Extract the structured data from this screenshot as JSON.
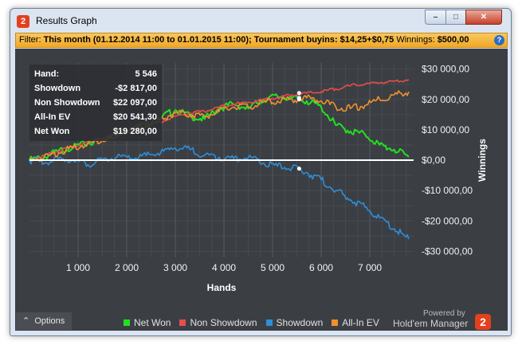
{
  "window": {
    "title": "Results Graph"
  },
  "filter": {
    "prefix": "Filter: ",
    "bold_text": "This month (01.12.2014 11:00 to 01.01.2015 11:00); Tournament buyins: $14,25+$0,75",
    "winnings_label": " Winnings: ",
    "winnings_value": "$500,00"
  },
  "stats": [
    {
      "label": "Hand:",
      "value": "5 546"
    },
    {
      "label": "Showdown",
      "value": "-$2 817,00"
    },
    {
      "label": "Non Showdown",
      "value": "$22 097,00"
    },
    {
      "label": "All-In EV",
      "value": "$20 541,30"
    },
    {
      "label": "Net Won",
      "value": "$19 280,00"
    }
  ],
  "options_label": "Options",
  "brand": {
    "powered": "Powered by",
    "name": "Hold'em Manager",
    "logo_text": "2"
  },
  "colors": {
    "net_won": "#22e022",
    "non_showdown": "#e84c4c",
    "showdown": "#2f8ed8",
    "all_in_ev": "#f0912c"
  },
  "chart_data": {
    "type": "line",
    "xlabel": "Hands",
    "ylabel": "Winnings",
    "xlim": [
      0,
      7900
    ],
    "ylim": [
      -32000,
      32000
    ],
    "x_ticks": [
      1000,
      2000,
      3000,
      4000,
      5000,
      6000,
      7000
    ],
    "x_tick_labels": [
      "1 000",
      "2 000",
      "3 000",
      "4 000",
      "5 000",
      "6 000",
      "7 000"
    ],
    "y_ticks": [
      30000,
      20000,
      10000,
      0,
      -10000,
      -20000,
      -30000
    ],
    "y_tick_labels": [
      "$30 000,00",
      "$20 000,00",
      "$10 000,00",
      "$0,00",
      "-$10 000,00",
      "-$20 000,00",
      "-$30 000,00"
    ],
    "grid": true,
    "legend_position": "bottom",
    "cursor_x": 5546,
    "series": [
      {
        "name": "Net Won",
        "color": "#22e022",
        "x": [
          0,
          300,
          600,
          900,
          1200,
          1500,
          1800,
          2100,
          2400,
          2700,
          3000,
          3300,
          3600,
          3900,
          4200,
          4500,
          4800,
          5100,
          5400,
          5700,
          6000,
          6300,
          6600,
          6900,
          7200,
          7500,
          7800
        ],
        "y": [
          0,
          1000,
          3000,
          4500,
          5500,
          7000,
          8500,
          10500,
          12000,
          14000,
          16500,
          14500,
          13500,
          17000,
          18500,
          17000,
          20000,
          21000,
          20500,
          19500,
          17500,
          11500,
          9500,
          8500,
          5000,
          3500,
          1000
        ]
      },
      {
        "name": "Non Showdown",
        "color": "#e84c4c",
        "x": [
          0,
          300,
          600,
          900,
          1200,
          1500,
          1800,
          2100,
          2400,
          2700,
          3000,
          3300,
          3600,
          3900,
          4200,
          4500,
          4800,
          5100,
          5400,
          5700,
          6000,
          6300,
          6600,
          6900,
          7200,
          7500,
          7800
        ],
        "y": [
          0,
          1500,
          3000,
          4500,
          6000,
          7000,
          8500,
          10000,
          11000,
          12500,
          14500,
          15500,
          16000,
          17500,
          18500,
          19000,
          20000,
          20500,
          21500,
          22000,
          22500,
          23500,
          24500,
          25000,
          25500,
          26000,
          26500
        ]
      },
      {
        "name": "Showdown",
        "color": "#2f8ed8",
        "x": [
          0,
          300,
          600,
          900,
          1200,
          1500,
          1800,
          2100,
          2400,
          2700,
          3000,
          3300,
          3600,
          3900,
          4200,
          4500,
          4800,
          5100,
          5400,
          5700,
          6000,
          6300,
          6600,
          6900,
          7200,
          7500,
          7800
        ],
        "y": [
          0,
          -1000,
          500,
          0,
          -1500,
          0,
          1000,
          500,
          1500,
          2500,
          4000,
          3500,
          1500,
          1000,
          500,
          1000,
          -1000,
          -2000,
          -2500,
          -4000,
          -6500,
          -10000,
          -13000,
          -15500,
          -19000,
          -22500,
          -26000
        ]
      },
      {
        "name": "All-In EV",
        "color": "#f0912c",
        "x": [
          0,
          300,
          600,
          900,
          1200,
          1500,
          1800,
          2100,
          2400,
          2700,
          3000,
          3300,
          3600,
          3900,
          4200,
          4500,
          4800,
          5100,
          5400,
          5700,
          6000,
          6300,
          6600,
          6900,
          7200,
          7500,
          7800
        ],
        "y": [
          0,
          1000,
          2500,
          4000,
          5500,
          6500,
          8000,
          10000,
          11500,
          13500,
          15500,
          15000,
          14500,
          16000,
          17500,
          17500,
          19000,
          19500,
          20000,
          20500,
          19500,
          17500,
          17000,
          18000,
          20000,
          21500,
          22500
        ]
      }
    ]
  }
}
